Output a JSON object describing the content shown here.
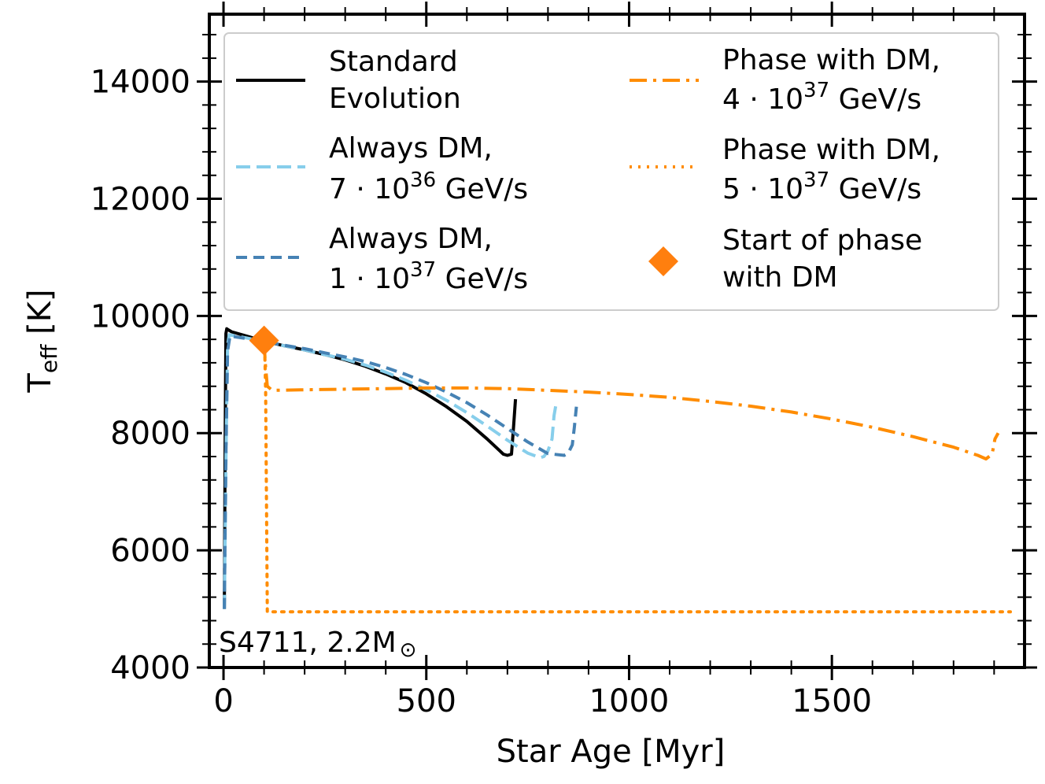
{
  "chart_data": {
    "type": "line",
    "xlabel": "Star Age [Myr]",
    "ylabel_main": "T",
    "ylabel_sub": "eff",
    "ylabel_unit": " [K]",
    "xlim": [
      -35,
      1975
    ],
    "ylim": [
      4000,
      15150
    ],
    "xticks": [
      0,
      500,
      1000,
      1500
    ],
    "yticks": [
      4000,
      6000,
      8000,
      10000,
      12000,
      14000
    ],
    "xtick_labels": [
      "0",
      "500",
      "1000",
      "1500"
    ],
    "ytick_labels": [
      "4000",
      "6000",
      "8000",
      "10000",
      "12000",
      "14000"
    ],
    "annotation_main": "S4711, 2.2M",
    "annotation_sub": "⊙",
    "series": [
      {
        "name": "Standard Evolution",
        "legend_line1": "Standard",
        "legend_line2": "Evolution",
        "color": "#000000",
        "dash": "solid",
        "x": [
          2,
          4,
          6,
          8,
          10,
          20,
          60,
          100,
          150,
          200,
          250,
          300,
          350,
          400,
          450,
          500,
          550,
          600,
          650,
          690,
          700,
          710,
          715,
          720
        ],
        "y": [
          5000,
          7800,
          9700,
          9780,
          9770,
          9730,
          9650,
          9570,
          9490,
          9420,
          9340,
          9250,
          9140,
          9010,
          8860,
          8670,
          8450,
          8200,
          7900,
          7640,
          7620,
          7640,
          8100,
          8580
        ]
      },
      {
        "name": "Always DM, 7 · 10^36 GeV/s",
        "legend_line1": "Always DM,",
        "legend_main": "7 · 10",
        "legend_exp": "36",
        "legend_unit": " GeV/s",
        "color": "#87ceeb",
        "dash": "long-dash",
        "x": [
          2,
          6,
          10,
          14,
          20,
          60,
          100,
          150,
          200,
          250,
          300,
          350,
          400,
          450,
          500,
          550,
          600,
          650,
          700,
          750,
          780,
          790,
          800,
          810,
          815,
          820
        ],
        "y": [
          5000,
          7500,
          9500,
          9680,
          9670,
          9620,
          9560,
          9490,
          9420,
          9340,
          9260,
          9160,
          9040,
          8900,
          8740,
          8560,
          8350,
          8120,
          7880,
          7660,
          7580,
          7600,
          7700,
          7900,
          8300,
          8500
        ]
      },
      {
        "name": "Always DM, 1 · 10^37 GeV/s",
        "legend_line1": "Always DM,",
        "legend_main": "1 · 10",
        "legend_exp": "37",
        "legend_unit": " GeV/s",
        "color": "#4682b4",
        "dash": "dash",
        "x": [
          2,
          6,
          10,
          16,
          22,
          60,
          100,
          150,
          200,
          250,
          300,
          350,
          400,
          450,
          500,
          550,
          600,
          650,
          700,
          750,
          800,
          840,
          850,
          860,
          865,
          870
        ],
        "y": [
          5000,
          7600,
          9400,
          9660,
          9650,
          9610,
          9560,
          9500,
          9440,
          9370,
          9300,
          9220,
          9120,
          9000,
          8860,
          8700,
          8520,
          8310,
          8080,
          7850,
          7650,
          7620,
          7660,
          7800,
          8100,
          8450
        ]
      },
      {
        "name": "Phase with DM, 4 · 10^37 GeV/s",
        "legend_line1": "Phase with DM,",
        "legend_main": "4 · 10",
        "legend_exp": "37",
        "legend_unit": " GeV/s",
        "color": "#ff8c00",
        "dash": "dash-dot",
        "x": [
          100,
          103,
          108,
          120,
          200,
          300,
          400,
          500,
          600,
          700,
          800,
          900,
          1000,
          1100,
          1200,
          1300,
          1400,
          1500,
          1600,
          1700,
          1800,
          1860,
          1880,
          1895,
          1902,
          1910
        ],
        "y": [
          9580,
          9200,
          8800,
          8730,
          8740,
          8750,
          8760,
          8770,
          8770,
          8760,
          8730,
          8700,
          8660,
          8610,
          8540,
          8460,
          8360,
          8240,
          8100,
          7940,
          7760,
          7620,
          7560,
          7640,
          7900,
          8000
        ]
      },
      {
        "name": "Phase with DM, 5 · 10^37 GeV/s",
        "legend_line1": "Phase with DM,",
        "legend_main": "5 · 10",
        "legend_exp": "37",
        "legend_unit": " GeV/s",
        "color": "#ff8c00",
        "dash": "dotted",
        "x": [
          100,
          102,
          104,
          108,
          1940
        ],
        "y": [
          9580,
          9300,
          8700,
          4950,
          4950
        ]
      }
    ],
    "markers": [
      {
        "name": "Start of phase with DM",
        "legend_line1": "Start of phase",
        "legend_line2": "with DM",
        "color": "#ff7f0e",
        "shape": "diamond",
        "x": 100,
        "y": 9580
      }
    ]
  }
}
